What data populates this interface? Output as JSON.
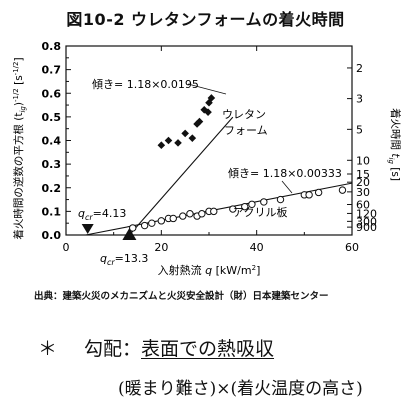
{
  "figure_title": "図10-2  ウレタンフォームの着火時間",
  "chart_data": {
    "type": "scatter",
    "title": "図10-2  ウレタンフォームの着火時間",
    "xlabel": "入射熱流  q [kW/m²]",
    "ylabel": "着火時間の逆数の平方根  (t_ig)^(-1/2) [s^(-1/2)]",
    "y2label": "着火時間  t_ig [s]",
    "xlim": [
      0,
      60
    ],
    "ylim": [
      0,
      0.8
    ],
    "xticks": [
      "0",
      "20",
      "40",
      "60"
    ],
    "yticks": [
      "0.0",
      "0.1",
      "0.2",
      "0.3",
      "0.4",
      "0.5",
      "0.6",
      "0.7",
      "0.8"
    ],
    "y2ticks": [
      {
        "label": "2",
        "t": 2
      },
      {
        "label": "3",
        "t": 3
      },
      {
        "label": "5",
        "t": 5
      },
      {
        "label": "10",
        "t": 10
      },
      {
        "label": "15",
        "t": 15
      },
      {
        "label": "20",
        "t": 20
      },
      {
        "label": "30",
        "t": 30
      },
      {
        "label": "60",
        "t": 60
      },
      {
        "label": "120",
        "t": 120
      },
      {
        "label": "300",
        "t": 300
      },
      {
        "label": "900",
        "t": 900
      }
    ],
    "grid": false,
    "series": [
      {
        "name": "ウレタンフォーム",
        "marker": "diamond",
        "points": [
          [
            20.0,
            0.38
          ],
          [
            21.5,
            0.4
          ],
          [
            23.5,
            0.39
          ],
          [
            25.0,
            0.43
          ],
          [
            26.5,
            0.41
          ],
          [
            27.5,
            0.47
          ],
          [
            28.0,
            0.48
          ],
          [
            29.0,
            0.53
          ],
          [
            30.0,
            0.56
          ],
          [
            30.5,
            0.58
          ],
          [
            29.8,
            0.52
          ]
        ]
      },
      {
        "name": "アクリル板",
        "marker": "circle",
        "points": [
          [
            14.0,
            0.03
          ],
          [
            16.5,
            0.04
          ],
          [
            18.0,
            0.05
          ],
          [
            20.0,
            0.06
          ],
          [
            21.5,
            0.07
          ],
          [
            22.5,
            0.07
          ],
          [
            24.5,
            0.08
          ],
          [
            26.0,
            0.09
          ],
          [
            27.5,
            0.08
          ],
          [
            28.5,
            0.09
          ],
          [
            30.0,
            0.1
          ],
          [
            31.0,
            0.1
          ],
          [
            35.0,
            0.11
          ],
          [
            37.5,
            0.12
          ],
          [
            39.0,
            0.13
          ],
          [
            41.5,
            0.14
          ],
          [
            45.0,
            0.15
          ],
          [
            50.0,
            0.17
          ],
          [
            51.0,
            0.17
          ],
          [
            53.0,
            0.18
          ],
          [
            58.0,
            0.19
          ]
        ]
      }
    ],
    "fit_lines": [
      {
        "label": "傾き= 1.18×0.0195",
        "qcr": 13.3,
        "slope": 0.023,
        "x_end": 35
      },
      {
        "label": "傾き= 1.18×0.00333",
        "qcr": 4.13,
        "slope": 0.00393,
        "x_end": 60
      }
    ],
    "annotations": {
      "qcr_urethane": {
        "text": "q",
        "sub": "cr",
        "value": "=13.3"
      },
      "qcr_acrylic": {
        "text": "q",
        "sub": "cr",
        "value": "=4.13"
      }
    },
    "labels": {
      "urethane_1": "ウレタン",
      "urethane_2": "フォーム",
      "acrylic": "アクリル板",
      "ylabel_jp": "着火時間の逆数の平方根",
      "ylabel_sym": "(t",
      "ylabel_sub": "ig",
      "ylabel_sup": "-1/2",
      "ylabel_unit": "[s",
      "ylabel_unit_sup": "-1/2",
      "y2label_jp": "着火時間",
      "y2label_sym": "t",
      "y2label_sub": "ig",
      "y2label_unit": "[s]",
      "xlabel_jp": "入射熱流",
      "xlabel_sym": "q",
      "xlabel_unit": "[kW/m",
      "xlabel_unit_sup": "2"
    }
  },
  "source_note": "出典：建築火災のメカニズムと火災安全設計（財）日本建築センター",
  "note": {
    "symbol": "＊",
    "label": "勾配：",
    "value": "表面での熱吸収",
    "line2": "(暖まり難さ)×(着火温度の高さ)"
  }
}
